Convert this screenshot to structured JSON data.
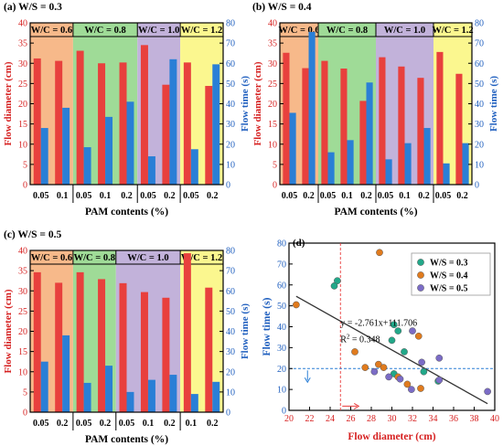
{
  "colors": {
    "diameter": "#e8403d",
    "flowtime": "#2a7fd6",
    "regions": [
      "#f7b98a",
      "#9fdb97",
      "#c2b2da",
      "#fbf78f"
    ],
    "axis": "#000000",
    "label_red": "#d62020",
    "label_blue": "#1f5fbf",
    "scatter": [
      "#22a889",
      "#e07b1e",
      "#7b6cc6"
    ],
    "fit_line": "#333333",
    "guide": "#e83a3a",
    "guide_blue": "#2a7fd6"
  },
  "shared": {
    "left_axis_label": "Flow diameter (cm)",
    "right_axis_label": "Flow time (s)",
    "x_axis_label": "PAM contents (%)"
  },
  "chart_data": [
    {
      "panel": "(a)",
      "type": "bar",
      "title": "(a) W/S = 0.3",
      "xlabel": "PAM contents (%)",
      "ylabel": "Flow diameter (cm)",
      "ylabel_right": "Flow time (s)",
      "ylim": [
        0,
        40
      ],
      "y2lim": [
        0,
        80
      ],
      "yticks": [
        0,
        5,
        10,
        15,
        20,
        25,
        30,
        35,
        40
      ],
      "y2ticks": [
        0,
        10,
        20,
        30,
        40,
        50,
        60,
        70,
        80
      ],
      "groups": [
        {
          "label": "W/C = 0.6",
          "categories": [
            "0.05",
            "0.1"
          ]
        },
        {
          "label": "W/C = 0.8",
          "categories": [
            "0.05",
            "0.1",
            "0.2"
          ]
        },
        {
          "label": "W/C = 1.0",
          "categories": [
            "0.05",
            "0.2"
          ]
        },
        {
          "label": "W/C = 1.2",
          "categories": [
            "0.05",
            "0.2"
          ]
        }
      ],
      "series": [
        {
          "name": "Flow diameter",
          "axis": "left",
          "values": [
            31.2,
            30.6,
            33.1,
            30.0,
            30.2,
            34.5,
            24.7,
            30.2,
            24.4
          ]
        },
        {
          "name": "Flow time",
          "axis": "right",
          "values": [
            28.0,
            38.0,
            18.5,
            33.5,
            41.0,
            14.0,
            62.0,
            17.5,
            59.5
          ]
        }
      ]
    },
    {
      "panel": "(b)",
      "type": "bar",
      "title": "(b) W/S = 0.4",
      "xlabel": "PAM contents (%)",
      "ylabel": "Flow diameter (cm)",
      "ylabel_right": "Flow time (s)",
      "ylim": [
        0,
        40
      ],
      "y2lim": [
        0,
        80
      ],
      "yticks": [
        0,
        5,
        10,
        15,
        20,
        25,
        30,
        35,
        40
      ],
      "y2ticks": [
        0,
        10,
        20,
        30,
        40,
        50,
        60,
        70,
        80
      ],
      "groups": [
        {
          "label": "W/C = 0.6",
          "categories": [
            "0.05",
            "0.2"
          ]
        },
        {
          "label": "W/C = 0.8",
          "categories": [
            "0.05",
            "0.1",
            "0.2"
          ]
        },
        {
          "label": "W/C = 1.0",
          "categories": [
            "0.05",
            "0.1",
            "0.2"
          ]
        },
        {
          "label": "W/C = 1.2",
          "categories": [
            "0.05",
            "0.2"
          ]
        }
      ],
      "series": [
        {
          "name": "Flow diameter",
          "axis": "left",
          "values": [
            32.6,
            28.8,
            30.6,
            28.7,
            20.7,
            31.5,
            29.2,
            26.4,
            32.8,
            27.4
          ]
        },
        {
          "name": "Flow time",
          "axis": "right",
          "values": [
            35.5,
            75.5,
            16.0,
            22.0,
            50.5,
            12.5,
            20.5,
            28.0,
            10.5,
            20.5
          ]
        }
      ]
    },
    {
      "panel": "(c)",
      "type": "bar",
      "title": "(c) W/S = 0.5",
      "xlabel": "PAM contents (%)",
      "ylabel": "Flow diameter (cm)",
      "ylabel_right": "Flow time (s)",
      "ylim": [
        0,
        40
      ],
      "y2lim": [
        0,
        80
      ],
      "yticks": [
        0,
        5,
        10,
        15,
        20,
        25,
        30,
        35,
        40
      ],
      "y2ticks": [
        0,
        10,
        20,
        30,
        40,
        50,
        60,
        70,
        80
      ],
      "groups": [
        {
          "label": "W/C = 0.6",
          "categories": [
            "0.05",
            "0.2"
          ]
        },
        {
          "label": "W/C = 0.8",
          "categories": [
            "0.05",
            "0.2"
          ]
        },
        {
          "label": "W/C = 1.0",
          "categories": [
            "0.05",
            "0.1",
            "0.2"
          ]
        },
        {
          "label": "W/C = 1.2",
          "categories": [
            "0.1",
            "0.2"
          ]
        }
      ],
      "series": [
        {
          "name": "Flow diameter",
          "axis": "left",
          "values": [
            34.6,
            32.0,
            34.6,
            32.9,
            31.9,
            29.7,
            28.3,
            39.3,
            30.8
          ]
        },
        {
          "name": "Flow time",
          "axis": "right",
          "values": [
            25.0,
            38.0,
            14.5,
            23.0,
            10.0,
            16.0,
            18.5,
            9.0,
            15.0
          ]
        }
      ]
    },
    {
      "panel": "(d)",
      "type": "scatter",
      "title": "(d)",
      "xlabel": "Flow diameter (cm)",
      "ylabel": "Flow time (s)",
      "xlim": [
        20,
        40
      ],
      "ylim": [
        0,
        80
      ],
      "xticks": [
        20,
        22,
        24,
        26,
        28,
        30,
        32,
        34,
        36,
        38,
        40
      ],
      "yticks": [
        0,
        10,
        20,
        30,
        40,
        50,
        60,
        70,
        80
      ],
      "legend_position": "top-right",
      "annotation_equation": "y = -2.761x+111.706",
      "annotation_r2_base": "R",
      "annotation_r2_sup": "2",
      "annotation_r2_value": " = 0.348",
      "fit": {
        "slope": -2.761,
        "intercept": 111.706,
        "x_range": [
          20.7,
          39.3
        ]
      },
      "guide_x": 25,
      "guide_y": 20,
      "series": [
        {
          "name": "W/S = 0.3",
          "points": [
            [
              31.2,
              28.0
            ],
            [
              30.6,
              38.0
            ],
            [
              33.1,
              18.5
            ],
            [
              30.0,
              33.5
            ],
            [
              30.2,
              41.0
            ],
            [
              34.5,
              14.0
            ],
            [
              24.7,
              62.0
            ],
            [
              30.2,
              17.5
            ],
            [
              24.4,
              59.5
            ]
          ]
        },
        {
          "name": "W/S = 0.4",
          "points": [
            [
              32.6,
              35.5
            ],
            [
              28.8,
              75.5
            ],
            [
              30.6,
              16.0
            ],
            [
              28.7,
              22.0
            ],
            [
              20.7,
              50.5
            ],
            [
              31.5,
              12.5
            ],
            [
              29.2,
              20.5
            ],
            [
              26.4,
              28.0
            ],
            [
              32.8,
              10.5
            ],
            [
              27.4,
              20.5
            ]
          ]
        },
        {
          "name": "W/S = 0.5",
          "points": [
            [
              34.6,
              25.0
            ],
            [
              32.0,
              38.0
            ],
            [
              34.6,
              14.5
            ],
            [
              32.9,
              23.0
            ],
            [
              31.9,
              10.0
            ],
            [
              29.7,
              16.0
            ],
            [
              28.3,
              18.5
            ],
            [
              39.3,
              9.0
            ],
            [
              30.8,
              15.0
            ]
          ]
        }
      ]
    }
  ]
}
